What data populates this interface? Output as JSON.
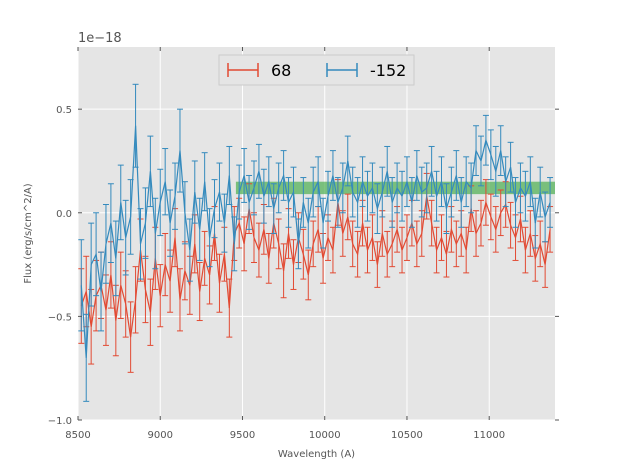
{
  "chart_data": {
    "type": "line",
    "title": "",
    "xlabel": "Wavelength (A)",
    "ylabel": "Flux (erg/s/cm^2/A)",
    "offset_text": "1e−18",
    "xlim": [
      8500,
      11400
    ],
    "ylim": [
      -1.0,
      0.8
    ],
    "scale": 1e-18,
    "grid": true,
    "xticks": [
      8500,
      9000,
      9500,
      10000,
      10500,
      11000
    ],
    "xtick_labels": [
      "8500",
      "9000",
      "9500",
      "10000",
      "10500",
      "11000"
    ],
    "yticks": [
      -1.0,
      -0.5,
      0.0,
      0.5
    ],
    "ytick_labels": [
      "−1.0",
      "−0.5",
      "0.0",
      "0.5"
    ],
    "legend": {
      "placement": "top-center",
      "entries": [
        "68",
        "-152"
      ]
    },
    "band": {
      "x": [
        9460,
        11400
      ],
      "y": [
        0.09,
        0.15
      ],
      "color": "#4caf50"
    },
    "colors": {
      "series1": "#e24a33",
      "series2": "#348abd",
      "background": "#e5e5e5",
      "grid": "#ffffff"
    },
    "series": [
      {
        "name": "68",
        "color": "#e24a33",
        "x": [
          8520,
          8550,
          8580,
          8610,
          8640,
          8670,
          8700,
          8730,
          8760,
          8790,
          8820,
          8850,
          8880,
          8910,
          8940,
          8970,
          9000,
          9030,
          9060,
          9090,
          9120,
          9150,
          9180,
          9210,
          9240,
          9270,
          9300,
          9330,
          9360,
          9390,
          9420,
          9450,
          9480,
          9510,
          9540,
          9570,
          9600,
          9630,
          9660,
          9690,
          9720,
          9750,
          9780,
          9810,
          9840,
          9870,
          9900,
          9930,
          9960,
          9990,
          10020,
          10050,
          10080,
          10110,
          10140,
          10170,
          10200,
          10230,
          10260,
          10290,
          10320,
          10350,
          10380,
          10410,
          10440,
          10470,
          10500,
          10530,
          10560,
          10590,
          10620,
          10650,
          10680,
          10710,
          10740,
          10770,
          10800,
          10830,
          10860,
          10890,
          10920,
          10950,
          10980,
          11010,
          11040,
          11070,
          11100,
          11130,
          11160,
          11190,
          11220,
          11250,
          11280,
          11310,
          11340,
          11370
        ],
        "y": [
          -0.45,
          -0.38,
          -0.55,
          -0.4,
          -0.35,
          -0.47,
          -0.3,
          -0.52,
          -0.35,
          -0.44,
          -0.6,
          -0.42,
          -0.18,
          -0.37,
          -0.48,
          -0.22,
          -0.4,
          -0.25,
          -0.33,
          -0.12,
          -0.42,
          -0.28,
          -0.35,
          -0.15,
          -0.38,
          -0.22,
          -0.3,
          -0.1,
          -0.34,
          -0.2,
          -0.46,
          -0.1,
          -0.05,
          -0.15,
          0.02,
          -0.12,
          -0.18,
          -0.08,
          -0.22,
          -0.05,
          -0.15,
          -0.28,
          -0.1,
          -0.25,
          -0.12,
          -0.2,
          -0.3,
          -0.15,
          -0.08,
          -0.22,
          -0.12,
          -0.18,
          0.05,
          -0.1,
          -0.02,
          -0.15,
          -0.2,
          -0.05,
          -0.18,
          -0.12,
          -0.25,
          -0.1,
          -0.2,
          -0.15,
          -0.08,
          -0.18,
          -0.12,
          -0.05,
          -0.15,
          -0.1,
          0.08,
          -0.05,
          -0.18,
          -0.12,
          -0.2,
          -0.08,
          -0.15,
          -0.1,
          -0.18,
          0.02,
          -0.1,
          -0.05,
          0.05,
          -0.02,
          -0.08,
          0.0,
          0.04,
          -0.06,
          -0.12,
          -0.03,
          -0.18,
          -0.1,
          -0.22,
          -0.15,
          -0.25,
          -0.08
        ],
        "err": [
          0.18,
          0.17,
          0.18,
          0.17,
          0.16,
          0.17,
          0.16,
          0.17,
          0.16,
          0.16,
          0.17,
          0.16,
          0.15,
          0.16,
          0.16,
          0.15,
          0.15,
          0.15,
          0.15,
          0.14,
          0.15,
          0.14,
          0.14,
          0.14,
          0.14,
          0.13,
          0.14,
          0.13,
          0.14,
          0.13,
          0.14,
          0.13,
          0.12,
          0.13,
          0.12,
          0.12,
          0.13,
          0.12,
          0.12,
          0.12,
          0.12,
          0.13,
          0.12,
          0.12,
          0.12,
          0.12,
          0.12,
          0.11,
          0.11,
          0.12,
          0.11,
          0.11,
          0.11,
          0.11,
          0.11,
          0.11,
          0.11,
          0.11,
          0.11,
          0.11,
          0.11,
          0.11,
          0.11,
          0.11,
          0.11,
          0.11,
          0.11,
          0.11,
          0.11,
          0.11,
          0.11,
          0.11,
          0.11,
          0.11,
          0.11,
          0.11,
          0.11,
          0.11,
          0.11,
          0.11,
          0.11,
          0.11,
          0.11,
          0.11,
          0.11,
          0.11,
          0.11,
          0.11,
          0.11,
          0.11,
          0.11,
          0.11,
          0.11,
          0.11,
          0.11,
          0.11
        ]
      },
      {
        "name": "-152",
        "color": "#348abd",
        "x": [
          8520,
          8550,
          8580,
          8610,
          8640,
          8670,
          8700,
          8730,
          8760,
          8790,
          8820,
          8850,
          8880,
          8910,
          8940,
          8970,
          9000,
          9030,
          9060,
          9090,
          9120,
          9150,
          9180,
          9210,
          9240,
          9270,
          9300,
          9330,
          9360,
          9390,
          9420,
          9450,
          9480,
          9510,
          9540,
          9570,
          9600,
          9630,
          9660,
          9690,
          9720,
          9750,
          9780,
          9810,
          9840,
          9870,
          9900,
          9930,
          9960,
          9990,
          10020,
          10050,
          10080,
          10110,
          10140,
          10170,
          10200,
          10230,
          10260,
          10290,
          10320,
          10350,
          10380,
          10410,
          10440,
          10470,
          10500,
          10530,
          10560,
          10590,
          10620,
          10650,
          10680,
          10710,
          10740,
          10770,
          10800,
          10830,
          10860,
          10890,
          10920,
          10950,
          10980,
          11010,
          11040,
          11070,
          11100,
          11130,
          11160,
          11190,
          11220,
          11250,
          11280,
          11310,
          11340,
          11370
        ],
        "y": [
          -0.35,
          -0.7,
          -0.25,
          -0.2,
          -0.38,
          -0.15,
          -0.05,
          -0.22,
          0.05,
          -0.12,
          -0.02,
          0.42,
          -0.15,
          -0.05,
          0.2,
          -0.1,
          0.05,
          0.15,
          -0.05,
          0.08,
          0.3,
          0.0,
          -0.18,
          0.1,
          -0.08,
          0.15,
          -0.12,
          0.02,
          0.1,
          -0.05,
          0.18,
          -0.15,
          0.1,
          0.18,
          0.05,
          0.12,
          0.2,
          0.08,
          0.15,
          0.02,
          0.12,
          0.18,
          0.05,
          0.1,
          -0.15,
          0.05,
          -0.05,
          0.1,
          0.15,
          -0.05,
          0.08,
          0.18,
          0.05,
          0.12,
          0.25,
          0.1,
          0.05,
          0.15,
          0.08,
          0.12,
          0.02,
          0.1,
          0.2,
          0.05,
          0.12,
          0.08,
          0.15,
          0.05,
          0.18,
          0.1,
          0.12,
          0.2,
          0.08,
          0.15,
          0.02,
          0.1,
          0.18,
          0.05,
          0.15,
          0.12,
          0.3,
          0.25,
          0.35,
          0.28,
          0.2,
          0.3,
          0.15,
          0.22,
          0.05,
          0.12,
          0.08,
          0.15,
          -0.05,
          0.1,
          -0.02,
          0.05
        ],
        "err": [
          0.22,
          0.21,
          0.2,
          0.2,
          0.19,
          0.19,
          0.19,
          0.18,
          0.18,
          0.18,
          0.18,
          0.2,
          0.17,
          0.17,
          0.17,
          0.17,
          0.16,
          0.16,
          0.16,
          0.16,
          0.2,
          0.15,
          0.15,
          0.15,
          0.15,
          0.14,
          0.14,
          0.14,
          0.14,
          0.14,
          0.14,
          0.13,
          0.13,
          0.13,
          0.13,
          0.13,
          0.13,
          0.13,
          0.12,
          0.12,
          0.12,
          0.12,
          0.12,
          0.12,
          0.12,
          0.12,
          0.12,
          0.12,
          0.12,
          0.12,
          0.12,
          0.12,
          0.12,
          0.12,
          0.12,
          0.12,
          0.12,
          0.12,
          0.12,
          0.12,
          0.12,
          0.12,
          0.12,
          0.12,
          0.12,
          0.12,
          0.12,
          0.12,
          0.12,
          0.12,
          0.12,
          0.12,
          0.12,
          0.12,
          0.12,
          0.12,
          0.12,
          0.12,
          0.12,
          0.12,
          0.12,
          0.12,
          0.12,
          0.12,
          0.12,
          0.12,
          0.12,
          0.12,
          0.12,
          0.12,
          0.12,
          0.12,
          0.12,
          0.12,
          0.12,
          0.12
        ]
      }
    ]
  }
}
